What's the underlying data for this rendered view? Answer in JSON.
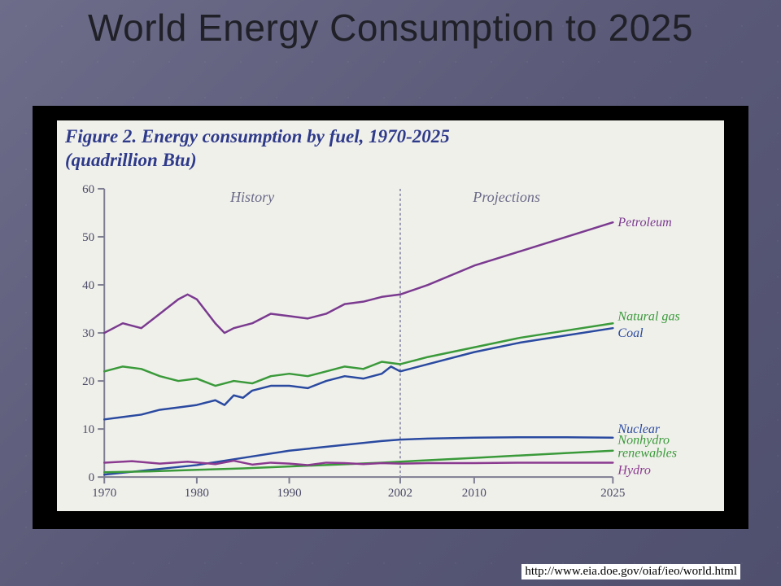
{
  "slide": {
    "background_gradient": [
      "#6d6d8a",
      "#4f4f6e"
    ],
    "title": "World Energy Consumption to 2025",
    "title_color": "#202028",
    "title_fontsize": 46
  },
  "source": {
    "text": "http://www.eia.doe.gov/oiaf/ieo/world.html",
    "color": "#000000",
    "fontsize": 15
  },
  "chart": {
    "type": "line",
    "frame_background": "#000000",
    "inner_background": "#f0f0eb",
    "figure_title_line1": "Figure 2. Energy consumption by fuel, 1970-2025",
    "figure_title_line2": "(quadrillion Btu)",
    "figure_title_color": "#2e3a8a",
    "figure_title_fontsize": 23,
    "figure_title_style": "italic bold",
    "axis_color": "#7e7e92",
    "label_color": "#4a4a66",
    "label_fontsize": 15,
    "xlim": [
      1970,
      2025
    ],
    "ylim": [
      0,
      60
    ],
    "ytick_step": 10,
    "yticks": [
      0,
      10,
      20,
      30,
      40,
      50,
      60
    ],
    "xticks": [
      1970,
      1980,
      1990,
      2002,
      2010,
      2025
    ],
    "divider_year": 2002,
    "divider_color": "#9a9ab0",
    "regions": {
      "history": {
        "label": "History",
        "fontsize": 18,
        "color": "#6a6a88"
      },
      "projections": {
        "label": "Projections",
        "fontsize": 18,
        "color": "#6a6a88"
      }
    },
    "line_width": 2.5,
    "series": [
      {
        "name": "Petroleum",
        "color": "#7a3a8f",
        "label_color": "#7a3a8f",
        "points": [
          [
            1970,
            30
          ],
          [
            1972,
            32
          ],
          [
            1974,
            31
          ],
          [
            1976,
            34
          ],
          [
            1978,
            37
          ],
          [
            1979,
            38
          ],
          [
            1980,
            37
          ],
          [
            1982,
            32
          ],
          [
            1983,
            30
          ],
          [
            1984,
            31
          ],
          [
            1985,
            31.5
          ],
          [
            1986,
            32
          ],
          [
            1988,
            34
          ],
          [
            1990,
            33.5
          ],
          [
            1992,
            33
          ],
          [
            1994,
            34
          ],
          [
            1996,
            36
          ],
          [
            1998,
            36.5
          ],
          [
            2000,
            37.5
          ],
          [
            2002,
            38
          ],
          [
            2005,
            40
          ],
          [
            2010,
            44
          ],
          [
            2015,
            47
          ],
          [
            2020,
            50
          ],
          [
            2025,
            53
          ]
        ]
      },
      {
        "name": "Natural gas",
        "color": "#3a9a3a",
        "label_color": "#3a9a3a",
        "points": [
          [
            1970,
            22
          ],
          [
            1972,
            23
          ],
          [
            1974,
            22.5
          ],
          [
            1976,
            21
          ],
          [
            1978,
            20
          ],
          [
            1980,
            20.5
          ],
          [
            1982,
            19
          ],
          [
            1984,
            20
          ],
          [
            1986,
            19.5
          ],
          [
            1988,
            21
          ],
          [
            1990,
            21.5
          ],
          [
            1992,
            21
          ],
          [
            1994,
            22
          ],
          [
            1996,
            23
          ],
          [
            1998,
            22.5
          ],
          [
            2000,
            24
          ],
          [
            2002,
            23.5
          ],
          [
            2005,
            25
          ],
          [
            2010,
            27
          ],
          [
            2015,
            29
          ],
          [
            2020,
            30.5
          ],
          [
            2025,
            32
          ]
        ]
      },
      {
        "name": "Coal",
        "color": "#2a4aa0",
        "label_color": "#2a4aa0",
        "points": [
          [
            1970,
            12
          ],
          [
            1972,
            12.5
          ],
          [
            1974,
            13
          ],
          [
            1976,
            14
          ],
          [
            1978,
            14.5
          ],
          [
            1980,
            15
          ],
          [
            1982,
            16
          ],
          [
            1983,
            15
          ],
          [
            1984,
            17
          ],
          [
            1985,
            16.5
          ],
          [
            1986,
            18
          ],
          [
            1988,
            19
          ],
          [
            1990,
            19
          ],
          [
            1992,
            18.5
          ],
          [
            1994,
            20
          ],
          [
            1996,
            21
          ],
          [
            1998,
            20.5
          ],
          [
            2000,
            21.5
          ],
          [
            2001,
            23
          ],
          [
            2002,
            22
          ],
          [
            2005,
            23.5
          ],
          [
            2010,
            26
          ],
          [
            2015,
            28
          ],
          [
            2020,
            29.5
          ],
          [
            2025,
            31
          ]
        ]
      },
      {
        "name": "Nuclear",
        "color": "#2a4aa0",
        "label_color": "#2a4aa0",
        "points": [
          [
            1970,
            0.5
          ],
          [
            1975,
            1.5
          ],
          [
            1980,
            2.5
          ],
          [
            1985,
            4
          ],
          [
            1990,
            5.5
          ],
          [
            1995,
            6.5
          ],
          [
            2000,
            7.5
          ],
          [
            2002,
            7.8
          ],
          [
            2005,
            8
          ],
          [
            2010,
            8.2
          ],
          [
            2015,
            8.3
          ],
          [
            2020,
            8.3
          ],
          [
            2025,
            8.2
          ]
        ]
      },
      {
        "name": "Nonhydro renewables",
        "color": "#3a9a3a",
        "label_color": "#3a9a3a",
        "points": [
          [
            1970,
            1
          ],
          [
            1975,
            1.2
          ],
          [
            1980,
            1.5
          ],
          [
            1985,
            1.8
          ],
          [
            1990,
            2.2
          ],
          [
            1995,
            2.6
          ],
          [
            2000,
            3
          ],
          [
            2002,
            3.2
          ],
          [
            2005,
            3.5
          ],
          [
            2010,
            4
          ],
          [
            2015,
            4.5
          ],
          [
            2020,
            5
          ],
          [
            2025,
            5.5
          ]
        ]
      },
      {
        "name": "Hydro",
        "color": "#8a3a8f",
        "label_color": "#8a3a8f",
        "points": [
          [
            1970,
            3
          ],
          [
            1973,
            3.3
          ],
          [
            1976,
            2.8
          ],
          [
            1979,
            3.2
          ],
          [
            1982,
            2.7
          ],
          [
            1984,
            3.4
          ],
          [
            1986,
            2.6
          ],
          [
            1988,
            3
          ],
          [
            1990,
            2.8
          ],
          [
            1992,
            2.5
          ],
          [
            1994,
            3
          ],
          [
            1996,
            2.9
          ],
          [
            1998,
            2.7
          ],
          [
            2000,
            2.9
          ],
          [
            2002,
            2.8
          ],
          [
            2005,
            2.9
          ],
          [
            2010,
            2.9
          ],
          [
            2015,
            3
          ],
          [
            2020,
            3
          ],
          [
            2025,
            3
          ]
        ]
      }
    ],
    "series_label_fontsize": 16,
    "series_label_fontstyle": "italic"
  }
}
